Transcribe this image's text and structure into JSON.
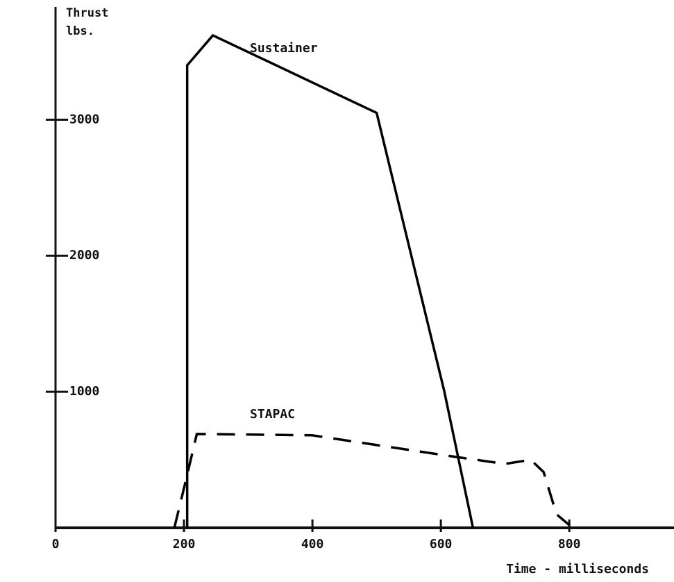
{
  "chart_data": {
    "type": "line",
    "y_label": "Thrust lbs.",
    "x_label": "Time - milliseconds",
    "xlim": [
      0,
      963
    ],
    "ylim": [
      0,
      3880
    ],
    "xticks": [
      0,
      200,
      400,
      600,
      800
    ],
    "yticks": [
      1000,
      2000,
      3000
    ],
    "grid": false,
    "series": [
      {
        "name": "Sustainer",
        "color": "#000000",
        "style": "solid",
        "x": [
          205,
          205,
          245,
          500,
          605,
          650
        ],
        "values": [
          0,
          3400,
          3620,
          3050,
          1010,
          0
        ]
      },
      {
        "name": "STAPAC",
        "color": "#000000",
        "style": "dashed",
        "x": [
          185,
          203,
          220,
          400,
          625,
          700,
          740,
          760,
          780,
          800
        ],
        "values": [
          0,
          350,
          690,
          680,
          520,
          470,
          500,
          410,
          100,
          20
        ]
      }
    ]
  }
}
